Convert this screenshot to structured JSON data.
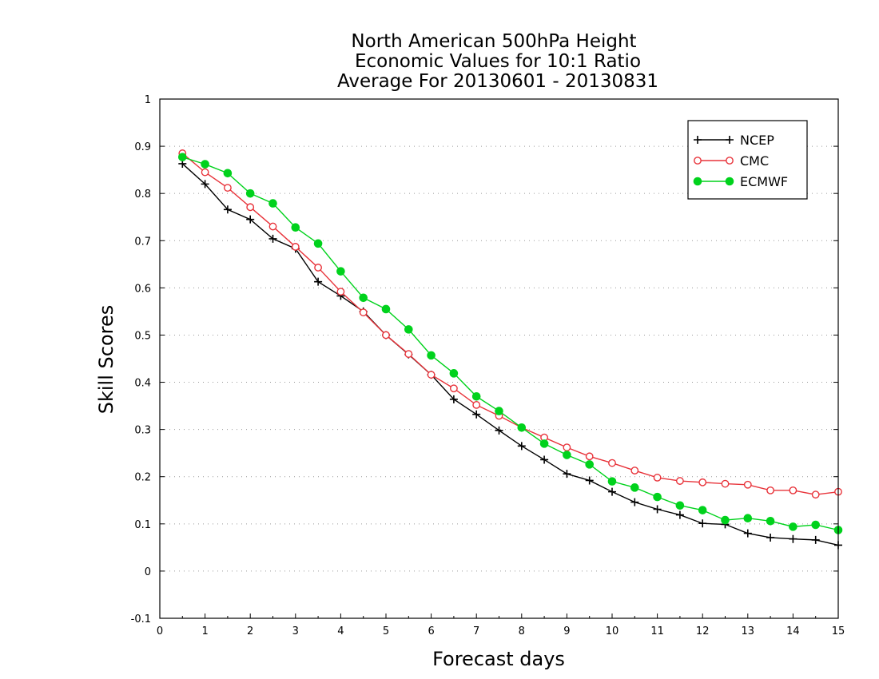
{
  "chart_data": {
    "type": "line",
    "title": [
      "North American 500hPa Height",
      "Economic Values for 10:1 Ratio",
      "Average For 20130601 - 20130831"
    ],
    "xlabel": "Forecast days",
    "ylabel": "Skill Scores",
    "xlim": [
      0,
      15
    ],
    "ylim": [
      -0.1,
      1
    ],
    "x_ticks": [
      "0",
      "1",
      "2",
      "3",
      "4",
      "5",
      "6",
      "7",
      "8",
      "9",
      "10",
      "11",
      "12",
      "13",
      "14",
      "15"
    ],
    "y_ticks": [
      "-0.1",
      "0",
      "0.1",
      "0.2",
      "0.3",
      "0.4",
      "0.5",
      "0.6",
      "0.7",
      "0.8",
      "0.9",
      "1"
    ],
    "grid": true,
    "legend_position": "top-right",
    "x": [
      0.5,
      1,
      1.5,
      2,
      2.5,
      3,
      3.5,
      4,
      4.5,
      5,
      5.5,
      6,
      6.5,
      7,
      7.5,
      8,
      8.5,
      9,
      9.5,
      10,
      10.5,
      11,
      11.5,
      12,
      12.5,
      13,
      13.5,
      14,
      14.5,
      15
    ],
    "series": [
      {
        "name": "NCEP",
        "color": "#000000",
        "marker": "plus",
        "values": [
          0.863,
          0.82,
          0.766,
          0.745,
          0.704,
          0.683,
          0.613,
          0.583,
          0.55,
          0.5,
          0.459,
          0.416,
          0.364,
          0.332,
          0.298,
          0.265,
          0.236,
          0.206,
          0.192,
          0.168,
          0.146,
          0.131,
          0.119,
          0.101,
          0.099,
          0.08,
          0.071,
          0.068,
          0.066,
          0.055
        ]
      },
      {
        "name": "CMC",
        "color": "#e8333a",
        "marker": "open-circle",
        "values": [
          0.885,
          0.845,
          0.812,
          0.771,
          0.73,
          0.687,
          0.643,
          0.592,
          0.548,
          0.5,
          0.46,
          0.416,
          0.387,
          0.352,
          0.329,
          0.304,
          0.283,
          0.262,
          0.243,
          0.229,
          0.213,
          0.198,
          0.191,
          0.188,
          0.185,
          0.183,
          0.171,
          0.171,
          0.162,
          0.168
        ]
      },
      {
        "name": "ECMWF",
        "color": "#00d21c",
        "marker": "filled-circle",
        "values": [
          0.877,
          0.862,
          0.843,
          0.8,
          0.779,
          0.728,
          0.694,
          0.635,
          0.579,
          0.555,
          0.512,
          0.457,
          0.419,
          0.37,
          0.339,
          0.304,
          0.27,
          0.246,
          0.226,
          0.19,
          0.177,
          0.157,
          0.139,
          0.129,
          0.108,
          0.112,
          0.106,
          0.094,
          0.098,
          0.087
        ]
      }
    ]
  }
}
